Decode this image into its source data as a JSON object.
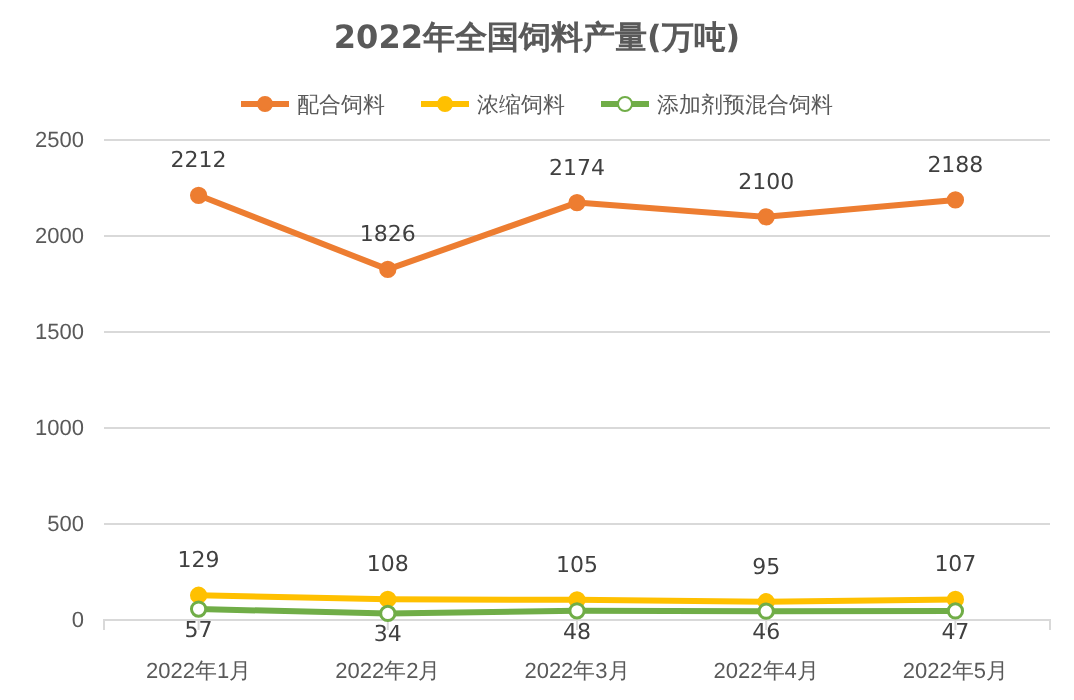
{
  "chart_data": {
    "type": "line",
    "title": "2022年全国饲料产量(万吨)",
    "categories": [
      "2022年1月",
      "2022年2月",
      "2022年3月",
      "2022年4月",
      "2022年5月"
    ],
    "series": [
      {
        "name": "配合饲料",
        "color": "#ed7d31",
        "values": [
          2212,
          1826,
          2174,
          2100,
          2188
        ]
      },
      {
        "name": "浓缩饲料",
        "color": "#ffc000",
        "values": [
          129,
          108,
          105,
          95,
          107
        ]
      },
      {
        "name": "添加剂预混合饲料",
        "color": "#70ad47",
        "values": [
          57,
          34,
          48,
          46,
          47
        ]
      }
    ],
    "ylim": [
      0,
      2500
    ],
    "yticks": [
      0,
      500,
      1000,
      1500,
      2000,
      2500
    ],
    "grid": "y",
    "legend": "top",
    "marker": "circle",
    "data_labels": true
  }
}
